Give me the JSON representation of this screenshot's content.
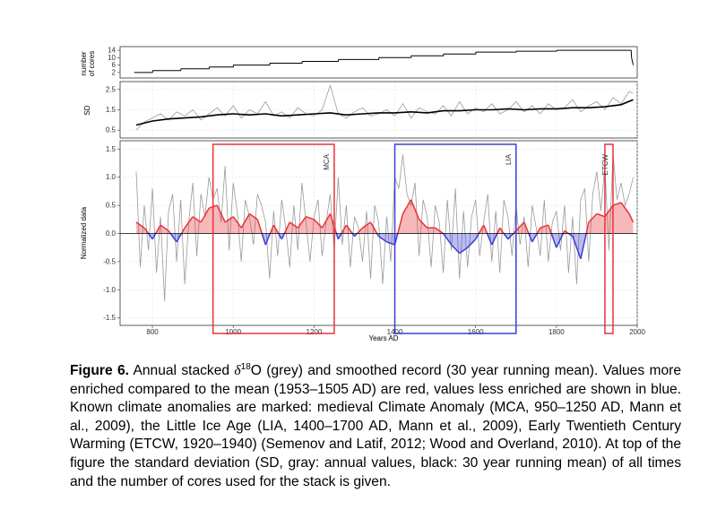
{
  "figure": {
    "label": "Figure 6.",
    "caption_pre": " Annual stacked ",
    "delta_symbol": "δ",
    "isotope_mass": "18",
    "caption_post": "O (grey) and smoothed record (30 year running mean). Values more enriched compared to the mean (1953–1505 AD) are red, values less enriched are shown in blue. Known climate anomalies are marked: medieval Climate Anomaly (MCA, 950–1250 AD, Mann et al., 2009), the Little Ice Age (LIA, 1400–1700 AD, Mann et al., 2009), Early Twentieth Century Warming (ETCW, 1920–1940) (Semenov and Latif, 2012; Wood and Overland, 2010). At top of the figure the standard deviation (SD, gray: annual values, black: 30 year running mean) of all times and the number of cores used for the stack is given."
  },
  "chart_data": [
    {
      "type": "line",
      "panel": "number of cores",
      "ylabel": "number of cores",
      "ylabel_lines": [
        "number",
        "of cores"
      ],
      "yticks": [
        2,
        6,
        10,
        14
      ],
      "ylim": [
        0,
        15
      ],
      "color": "#000000",
      "x": [
        755,
        800,
        801,
        870,
        871,
        940,
        941,
        1000,
        1001,
        1090,
        1091,
        1170,
        1171,
        1260,
        1261,
        1360,
        1361,
        1440,
        1441,
        1520,
        1521,
        1600,
        1601,
        1700,
        1701,
        1800,
        1801,
        1850,
        1851,
        1985,
        1986,
        1990
      ],
      "y": [
        2,
        2,
        3,
        3,
        4,
        4,
        5,
        5,
        6,
        6,
        7,
        7,
        8,
        8,
        9,
        9,
        10,
        10,
        11,
        11,
        12,
        12,
        13,
        13,
        13.5,
        13.5,
        14,
        14,
        14,
        14,
        10,
        6
      ]
    },
    {
      "type": "line",
      "panel": "SD",
      "ylabel": "SD",
      "yticks": [
        0.5,
        1.5,
        2.5
      ],
      "ylim": [
        0.2,
        2.8
      ],
      "series": [
        {
          "name": "annual values",
          "color": "#999999",
          "x": [
            760,
            780,
            800,
            820,
            840,
            860,
            880,
            900,
            920,
            940,
            960,
            980,
            1000,
            1020,
            1040,
            1060,
            1080,
            1100,
            1120,
            1140,
            1160,
            1180,
            1200,
            1220,
            1240,
            1260,
            1280,
            1300,
            1320,
            1340,
            1360,
            1380,
            1400,
            1420,
            1440,
            1460,
            1480,
            1500,
            1520,
            1540,
            1560,
            1580,
            1600,
            1620,
            1640,
            1660,
            1680,
            1700,
            1720,
            1740,
            1760,
            1780,
            1800,
            1820,
            1840,
            1860,
            1880,
            1900,
            1920,
            1940,
            1960,
            1980,
            1990
          ],
          "y": [
            0.5,
            0.9,
            1.1,
            1.3,
            1.0,
            1.4,
            1.2,
            1.5,
            1.0,
            1.3,
            1.6,
            1.2,
            1.7,
            1.1,
            1.5,
            1.3,
            1.9,
            1.2,
            1.4,
            1.1,
            1.6,
            1.3,
            1.2,
            1.5,
            2.7,
            1.3,
            1.1,
            1.4,
            1.6,
            1.2,
            1.3,
            1.5,
            1.2,
            1.8,
            1.1,
            1.6,
            1.4,
            1.3,
            1.7,
            1.2,
            1.9,
            1.3,
            1.6,
            1.4,
            1.8,
            1.3,
            1.5,
            1.9,
            1.4,
            1.7,
            1.3,
            1.8,
            1.5,
            1.6,
            2.0,
            1.4,
            1.7,
            1.9,
            1.5,
            2.1,
            1.8,
            2.4,
            2.3
          ]
        },
        {
          "name": "30 year running mean",
          "color": "#000000",
          "x": [
            760,
            800,
            840,
            880,
            920,
            960,
            1000,
            1040,
            1080,
            1120,
            1160,
            1200,
            1240,
            1280,
            1320,
            1360,
            1400,
            1440,
            1480,
            1520,
            1560,
            1600,
            1640,
            1680,
            1720,
            1760,
            1800,
            1840,
            1880,
            1920,
            1960,
            1990
          ],
          "y": [
            0.75,
            0.95,
            1.05,
            1.1,
            1.15,
            1.25,
            1.3,
            1.25,
            1.3,
            1.2,
            1.25,
            1.3,
            1.35,
            1.25,
            1.3,
            1.35,
            1.35,
            1.4,
            1.35,
            1.45,
            1.45,
            1.5,
            1.5,
            1.55,
            1.5,
            1.55,
            1.55,
            1.6,
            1.6,
            1.65,
            1.75,
            2.0
          ]
        }
      ]
    },
    {
      "type": "area",
      "panel": "stacked record",
      "xlabel": "Years AD",
      "ylabel": "Normalized data",
      "xticks": [
        800,
        1000,
        1200,
        1400,
        1600,
        1800,
        2000
      ],
      "xlim": [
        720,
        2000
      ],
      "yticks": [
        -1.5,
        -1.0,
        -0.5,
        0.0,
        0.5,
        1.0,
        1.5
      ],
      "ytick_labels": [
        "-1.5",
        "-1.0",
        "-0.5",
        "0.0",
        "0.5",
        "1.0",
        "1.5"
      ],
      "ylim": [
        -1.6,
        1.6
      ],
      "grid": true,
      "colors": {
        "positive": "#e8333a",
        "negative": "#3b3fd6",
        "annual": "#999999"
      },
      "series": [
        {
          "name": "annual values",
          "x": [
            760,
            770,
            780,
            790,
            800,
            810,
            820,
            830,
            840,
            850,
            860,
            870,
            880,
            890,
            900,
            910,
            920,
            930,
            940,
            950,
            960,
            970,
            980,
            990,
            1000,
            1010,
            1020,
            1030,
            1040,
            1050,
            1060,
            1070,
            1080,
            1090,
            1100,
            1110,
            1120,
            1130,
            1140,
            1150,
            1160,
            1170,
            1180,
            1190,
            1200,
            1210,
            1220,
            1230,
            1240,
            1250,
            1260,
            1270,
            1280,
            1290,
            1300,
            1310,
            1320,
            1330,
            1340,
            1350,
            1360,
            1370,
            1380,
            1390,
            1400,
            1410,
            1420,
            1430,
            1440,
            1450,
            1460,
            1470,
            1480,
            1490,
            1500,
            1510,
            1520,
            1530,
            1540,
            1550,
            1560,
            1570,
            1580,
            1590,
            1600,
            1610,
            1620,
            1630,
            1640,
            1650,
            1660,
            1670,
            1680,
            1690,
            1700,
            1710,
            1720,
            1730,
            1740,
            1750,
            1760,
            1770,
            1780,
            1790,
            1800,
            1810,
            1820,
            1830,
            1840,
            1850,
            1860,
            1870,
            1880,
            1890,
            1900,
            1910,
            1920,
            1930,
            1940,
            1950,
            1960,
            1970,
            1980,
            1990
          ],
          "y": [
            1.1,
            -0.6,
            0.5,
            -0.3,
            0.8,
            -0.7,
            0.3,
            -1.2,
            0.4,
            0.7,
            -0.5,
            0.6,
            -0.9,
            0.2,
            0.9,
            -0.4,
            0.7,
            0.3,
            1.0,
            0.6,
            0.8,
            0.2,
            1.2,
            -0.3,
            0.9,
            0.4,
            -0.5,
            0.6,
            0.3,
            -0.2,
            0.7,
            0.5,
            0.2,
            -0.8,
            0.4,
            -0.4,
            0.6,
            0.1,
            -0.6,
            0.5,
            -0.3,
            0.9,
            0.2,
            -0.5,
            0.3,
            0.6,
            -0.4,
            0.2,
            0.7,
            -0.3,
            1.0,
            -0.2,
            0.5,
            -0.6,
            0.3,
            0.1,
            -0.5,
            0.4,
            -0.8,
            0.5,
            0.2,
            -0.9,
            0.3,
            -0.5,
            1.0,
            0.8,
            1.4,
            0.7,
            0.5,
            0.9,
            -0.4,
            0.6,
            0.3,
            -0.6,
            0.5,
            0.2,
            -0.7,
            0.6,
            -0.3,
            0.8,
            -0.8,
            0.4,
            -0.6,
            0.3,
            0.6,
            -0.4,
            0.2,
            0.7,
            -0.5,
            0.4,
            -0.7,
            0.6,
            0.3,
            -0.4,
            0.5,
            -0.2,
            0.3,
            -0.6,
            0.5,
            0.1,
            -0.4,
            0.6,
            -0.5,
            0.2,
            0.4,
            -0.3,
            0.5,
            -0.7,
            0.3,
            -0.9,
            0.6,
            0.8,
            -0.5,
            0.7,
            1.1,
            0.4,
            1.2,
            -0.3,
            1.4,
            0.6,
            0.9,
            0.5,
            0.7,
            1.0
          ]
        },
        {
          "name": "30 year running mean",
          "x": [
            760,
            780,
            800,
            820,
            840,
            860,
            880,
            900,
            920,
            940,
            960,
            980,
            1000,
            1020,
            1040,
            1060,
            1080,
            1100,
            1120,
            1140,
            1160,
            1180,
            1200,
            1220,
            1240,
            1260,
            1280,
            1300,
            1320,
            1340,
            1360,
            1380,
            1400,
            1420,
            1440,
            1460,
            1480,
            1500,
            1520,
            1540,
            1560,
            1580,
            1600,
            1620,
            1640,
            1660,
            1680,
            1700,
            1720,
            1740,
            1760,
            1780,
            1800,
            1820,
            1840,
            1860,
            1880,
            1900,
            1920,
            1940,
            1960,
            1980,
            1990
          ],
          "y": [
            0.2,
            0.1,
            -0.1,
            0.15,
            0.05,
            -0.15,
            0.1,
            0.3,
            0.2,
            0.45,
            0.5,
            0.2,
            0.3,
            0.1,
            0.35,
            0.25,
            -0.2,
            0.15,
            -0.1,
            0.2,
            0.1,
            0.3,
            0.25,
            0.1,
            0.35,
            -0.1,
            0.15,
            -0.05,
            0.1,
            0.2,
            -0.05,
            -0.15,
            -0.2,
            0.35,
            0.6,
            0.25,
            0.1,
            0.1,
            0.0,
            -0.2,
            -0.35,
            -0.25,
            -0.1,
            0.15,
            -0.2,
            0.1,
            -0.1,
            0.05,
            0.2,
            -0.15,
            0.1,
            0.15,
            -0.25,
            0.05,
            -0.05,
            -0.45,
            0.2,
            0.35,
            0.3,
            0.5,
            0.55,
            0.35,
            0.2
          ]
        }
      ],
      "anomalies": [
        {
          "label": "MCA",
          "start": 950,
          "end": 1250,
          "color": "#e8333a"
        },
        {
          "label": "LIA",
          "start": 1400,
          "end": 1700,
          "color": "#3b3fd6"
        },
        {
          "label": "ETCW",
          "start": 1920,
          "end": 1940,
          "color": "#e8333a"
        }
      ]
    }
  ]
}
